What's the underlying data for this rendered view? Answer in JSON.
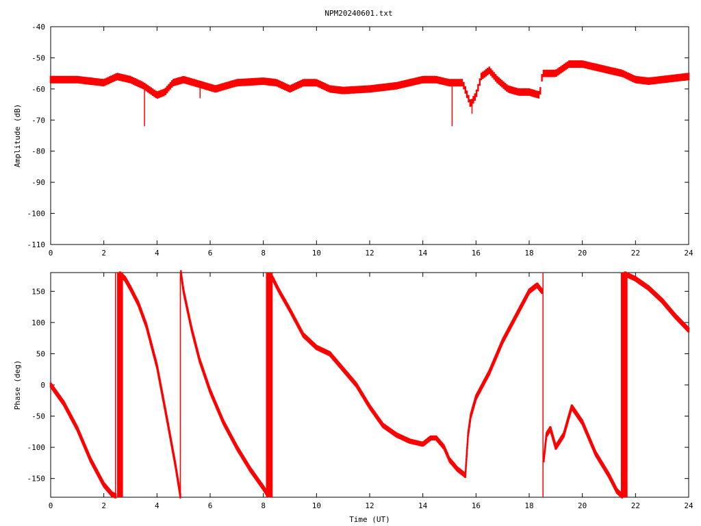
{
  "title": "NPM20240601.txt",
  "colors": {
    "series": "#ff0000",
    "frame": "#000000",
    "background": "#ffffff"
  },
  "chart_data": [
    {
      "type": "line",
      "xlabel": "",
      "ylabel": "Amplitude (dB)",
      "xlim": [
        0,
        24
      ],
      "ylim": [
        -110,
        -40
      ],
      "xticks": [
        0,
        2,
        4,
        6,
        8,
        10,
        12,
        14,
        16,
        18,
        20,
        22,
        24
      ],
      "yticks": [
        -110,
        -100,
        -90,
        -80,
        -70,
        -60,
        -50,
        -40
      ],
      "grid": false,
      "series": [
        {
          "x": [
            0,
            1,
            2,
            2.5,
            3,
            3.5,
            4,
            4.3,
            4.6,
            5,
            5.4,
            5.8,
            6.2,
            6.6,
            7,
            8,
            8.5,
            9,
            9.5,
            10,
            10.5,
            11,
            12,
            13,
            14,
            14.5,
            15,
            15.3,
            15.5,
            15.8,
            16,
            16.2,
            16.5,
            16.8,
            17.2,
            17.6,
            18,
            18.4,
            18.5,
            18.6,
            19,
            19.5,
            20,
            20.5,
            21,
            21.5,
            22,
            22.5,
            23,
            24
          ],
          "y": [
            -57,
            -57,
            -58,
            -56,
            -57,
            -59,
            -62,
            -61,
            -58,
            -57,
            -58,
            -59,
            -60,
            -59,
            -58,
            -57.5,
            -58,
            -60,
            -58,
            -58,
            -60,
            -60.5,
            -60,
            -59,
            -57,
            -57,
            -58,
            -58,
            -58,
            -65,
            -62,
            -56,
            -54,
            -57,
            -60,
            -61,
            -61,
            -62,
            -55,
            -55,
            -55,
            -52,
            -52,
            -53,
            -54,
            -55,
            -57,
            -57.5,
            -57,
            -56
          ],
          "noise_db": 1.2,
          "spikes": [
            {
              "x": 3.53,
              "y": -72
            },
            {
              "x": 5.62,
              "y": -63
            },
            {
              "x": 15.1,
              "y": -72
            },
            {
              "x": 15.85,
              "y": -68
            }
          ]
        }
      ]
    },
    {
      "type": "line",
      "xlabel": "Time (UT)",
      "ylabel": "Phase (deg)",
      "xlim": [
        0,
        24
      ],
      "ylim": [
        -180,
        180
      ],
      "xticks": [
        0,
        2,
        4,
        6,
        8,
        10,
        12,
        14,
        16,
        18,
        20,
        22,
        24
      ],
      "yticks": [
        -150,
        -100,
        -50,
        0,
        50,
        100,
        150
      ],
      "grid": false,
      "series": [
        {
          "segments": [
            {
              "x": [
                0,
                0.5,
                1,
                1.5,
                2,
                2.3,
                2.45
              ],
              "y": [
                0,
                -30,
                -70,
                -120,
                -160,
                -175,
                -178
              ]
            },
            {
              "x": [
                2.6,
                2.8,
                3,
                3.3,
                3.6,
                4,
                4.4,
                4.7,
                4.88
              ],
              "y": [
                178,
                170,
                155,
                130,
                95,
                30,
                -60,
                -130,
                -178
              ]
            },
            {
              "x": [
                4.9,
                5,
                5.3,
                5.6,
                6,
                6.5,
                7,
                7.5,
                8,
                8.15
              ],
              "y": [
                180,
                150,
                90,
                40,
                -10,
                -60,
                -100,
                -135,
                -165,
                -175
              ]
            },
            {
              "x": [
                8.3,
                8.6,
                9,
                9.5,
                10,
                10.5,
                11,
                11.5,
                12,
                12.5,
                13,
                13.5,
                14,
                14.3,
                14.5,
                14.8,
                15,
                15.3,
                15.6
              ],
              "y": [
                175,
                150,
                120,
                80,
                60,
                50,
                25,
                0,
                -35,
                -65,
                -80,
                -90,
                -95,
                -85,
                -85,
                -100,
                -120,
                -135,
                -145
              ]
            },
            {
              "x": [
                15.6,
                15.7,
                15.8,
                16,
                16.5,
                17,
                17.5,
                18,
                18.3,
                18.48
              ],
              "y": [
                -145,
                -80,
                -50,
                -20,
                20,
                70,
                110,
                150,
                160,
                150
              ]
            },
            {
              "x": [
                18.55,
                18.65,
                18.8,
                19,
                19.3,
                19.6,
                20,
                20.5,
                21,
                21.3,
                21.5
              ],
              "y": [
                -120,
                -80,
                -70,
                -100,
                -80,
                -35,
                -60,
                -110,
                -145,
                -170,
                -178
              ]
            },
            {
              "x": [
                21.6,
                22,
                22.5,
                23,
                23.5,
                24
              ],
              "y": [
                178,
                170,
                155,
                135,
                110,
                88
              ]
            }
          ],
          "noise_deg": 4,
          "vertical_bands": [
            {
              "x0": 2.42,
              "x1": 2.45
            },
            {
              "x0": 2.5,
              "x1": 2.72
            },
            {
              "x0": 4.86,
              "x1": 4.9
            },
            {
              "x0": 8.1,
              "x1": 8.35
            },
            {
              "x0": 18.5,
              "x1": 18.52
            },
            {
              "x0": 21.45,
              "x1": 21.7
            }
          ]
        }
      ]
    }
  ]
}
